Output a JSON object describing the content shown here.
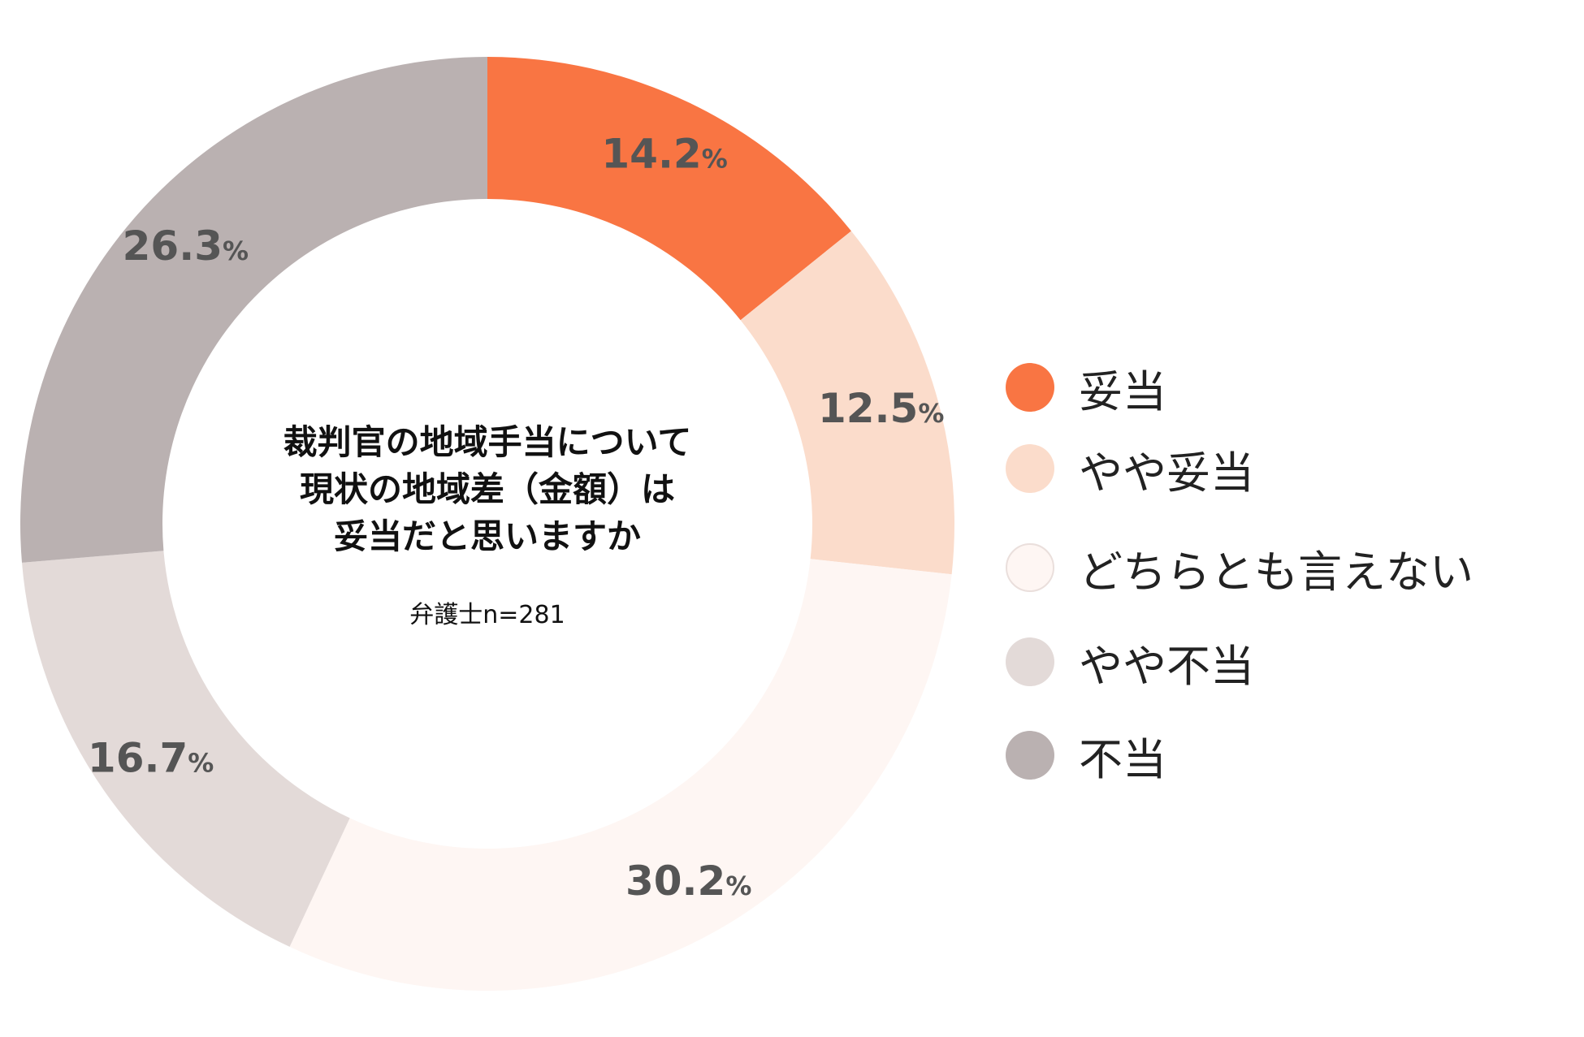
{
  "chart_data": {
    "type": "pie",
    "variant": "donut",
    "center_title": "裁判官の地域手当について\n現状の地域差（金額）は\n妥当だと思いますか",
    "center_subtitle": "弁護士n=281",
    "unit": "%",
    "legend_position": "right",
    "slices": [
      {
        "label": "妥当",
        "value": 14.2,
        "color": "#F97543"
      },
      {
        "label": "やや妥当",
        "value": 12.5,
        "color": "#FBDCCB"
      },
      {
        "label": "どちらとも言えない",
        "value": 30.2,
        "color": "#FEF6F3"
      },
      {
        "label": "やや不当",
        "value": 16.7,
        "color": "#E3DAD8"
      },
      {
        "label": "不当",
        "value": 26.3,
        "color": "#BAB1B1"
      }
    ]
  }
}
